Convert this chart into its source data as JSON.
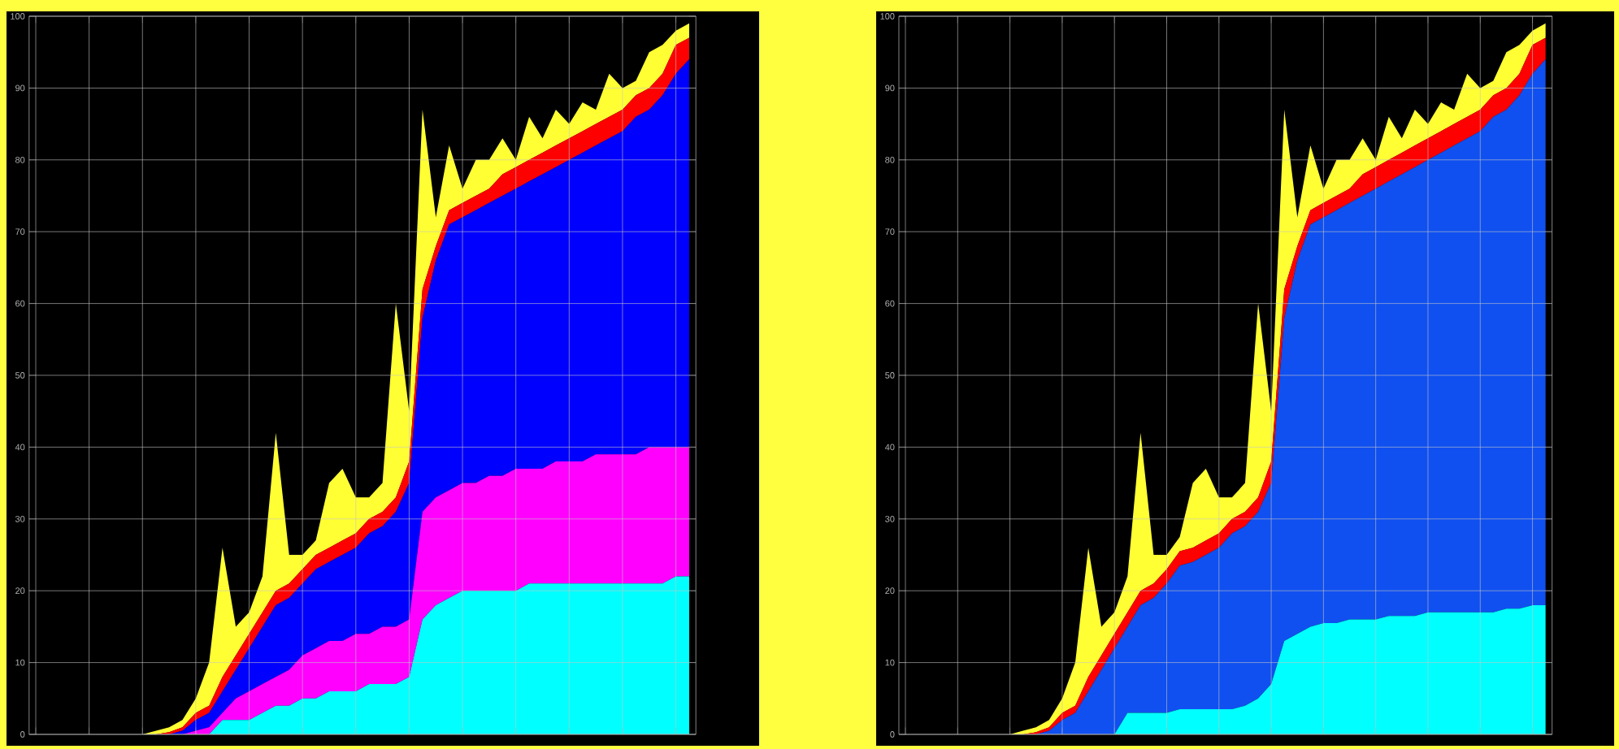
{
  "chart_data": [
    {
      "type": "area",
      "stacked": true,
      "grid": true,
      "categories": [
        null,
        null,
        null,
        null,
        null,
        null,
        null,
        null,
        null,
        null,
        null,
        null,
        null,
        null,
        null,
        null,
        null,
        null,
        null,
        null,
        null,
        null,
        null,
        null,
        null,
        null,
        null,
        null,
        null,
        null,
        null,
        null,
        null,
        null,
        null,
        null,
        null,
        null,
        null,
        null,
        null,
        null,
        null,
        null,
        null,
        null,
        null,
        null,
        null,
        null
      ],
      "series": [
        {
          "color": "#00ffff",
          "values": [
            0,
            0,
            0,
            0,
            0,
            0,
            0,
            0,
            0,
            0,
            0,
            0,
            0,
            0,
            2,
            2,
            2,
            3,
            4,
            4,
            5,
            5,
            6,
            6,
            6,
            7,
            7,
            7,
            8,
            16,
            18,
            19,
            20,
            20,
            20,
            20,
            20,
            21,
            21,
            21,
            21,
            21,
            21,
            21,
            21,
            21,
            21,
            21,
            22,
            22
          ]
        },
        {
          "color": "#ff00ff",
          "values": [
            0,
            0,
            0,
            0,
            0,
            0,
            0,
            0,
            0,
            0,
            0,
            0,
            0.5,
            1,
            1,
            3,
            4,
            4,
            4,
            5,
            6,
            7,
            7,
            7,
            8,
            7,
            8,
            8,
            8,
            15,
            15,
            15,
            15,
            15,
            16,
            16,
            17,
            16,
            16,
            17,
            17,
            17,
            18,
            18,
            18,
            18,
            19,
            19,
            18,
            18
          ]
        },
        {
          "color": "#0000ff",
          "values": [
            0,
            0,
            0,
            0,
            0,
            0,
            0,
            0,
            0,
            0,
            0,
            0.5,
            1.5,
            2,
            3,
            4,
            6,
            8,
            10,
            10,
            10,
            11,
            11,
            12,
            12,
            14,
            14,
            16,
            19,
            27,
            33,
            37,
            37,
            38,
            38,
            39,
            39,
            40,
            41,
            41,
            42,
            43,
            43,
            44,
            45,
            47,
            47,
            49,
            52,
            54
          ]
        },
        {
          "color": "#ff0000",
          "values": [
            0,
            0,
            0,
            0,
            0,
            0,
            0,
            0,
            0,
            0,
            0.3,
            0.5,
            1,
            1,
            2,
            2,
            2,
            2,
            2,
            2,
            2,
            2,
            2,
            2,
            2,
            2,
            2,
            2,
            3,
            4,
            2,
            2,
            2,
            2,
            2,
            3,
            3,
            3,
            3,
            3,
            3,
            3,
            3,
            3,
            3,
            3,
            3,
            3,
            4,
            3
          ]
        },
        {
          "color": "#ffff33",
          "values": [
            0,
            0,
            0,
            0,
            0,
            0,
            0,
            0,
            0,
            0.5,
            0.7,
            1,
            2,
            6,
            18,
            4,
            3,
            5,
            22,
            4,
            2,
            2,
            9,
            10,
            5,
            3,
            4,
            27,
            7,
            25,
            4,
            9,
            2,
            5,
            4,
            5,
            1,
            6,
            2,
            5,
            2,
            4,
            2,
            6,
            3,
            2,
            5,
            4,
            2,
            2
          ]
        }
      ],
      "ylim": [
        0,
        100
      ],
      "yticks": [
        0,
        10,
        20,
        30,
        40,
        50,
        60,
        70,
        80,
        90,
        100
      ]
    },
    {
      "type": "area",
      "stacked": true,
      "grid": true,
      "categories": [
        null,
        null,
        null,
        null,
        null,
        null,
        null,
        null,
        null,
        null,
        null,
        null,
        null,
        null,
        null,
        null,
        null,
        null,
        null,
        null,
        null,
        null,
        null,
        null,
        null,
        null,
        null,
        null,
        null,
        null,
        null,
        null,
        null,
        null,
        null,
        null,
        null,
        null,
        null,
        null,
        null,
        null,
        null,
        null,
        null,
        null,
        null,
        null,
        null,
        null
      ],
      "series": [
        {
          "color": "#00ffff",
          "values": [
            0,
            0,
            0,
            0,
            0,
            0,
            0,
            0,
            0,
            0,
            0,
            0,
            0,
            0,
            0,
            0,
            0,
            3,
            3,
            3,
            3,
            3.5,
            3.5,
            3.5,
            3.5,
            3.5,
            4,
            5,
            7,
            13,
            14,
            15,
            15.5,
            15.5,
            16,
            16,
            16,
            16.5,
            16.5,
            16.5,
            17,
            17,
            17,
            17,
            17,
            17,
            17.5,
            17.5,
            18,
            18
          ]
        },
        {
          "color": "#1050f0",
          "values": [
            0,
            0,
            0,
            0,
            0,
            0,
            0,
            0,
            0,
            0,
            0,
            0.5,
            2,
            3,
            6,
            9,
            12,
            12,
            15,
            16,
            18,
            20,
            20.5,
            21.5,
            22.5,
            24.5,
            25,
            26,
            28,
            45,
            52,
            56,
            56.5,
            57.5,
            58,
            59,
            60,
            60.5,
            61.5,
            62.5,
            63,
            64,
            65,
            66,
            67,
            69,
            69.5,
            71.5,
            74,
            76
          ]
        },
        {
          "color": "#ff0000",
          "values": [
            0,
            0,
            0,
            0,
            0,
            0,
            0,
            0,
            0,
            0,
            0.3,
            0.5,
            1,
            1,
            2,
            2,
            2,
            2,
            2,
            2,
            2,
            2,
            2,
            2,
            2,
            2,
            2,
            2,
            3,
            4,
            2,
            2,
            2,
            2,
            2,
            3,
            3,
            3,
            3,
            3,
            3,
            3,
            3,
            3,
            3,
            3,
            3,
            3,
            4,
            3
          ]
        },
        {
          "color": "#ffff33",
          "values": [
            0,
            0,
            0,
            0,
            0,
            0,
            0,
            0,
            0,
            0.5,
            0.7,
            1,
            2,
            6,
            18,
            4,
            3,
            5,
            22,
            4,
            2,
            2,
            9,
            10,
            5,
            3,
            4,
            27,
            7,
            25,
            4,
            9,
            2,
            5,
            4,
            5,
            1,
            6,
            2,
            5,
            2,
            4,
            2,
            6,
            3,
            2,
            5,
            4,
            2,
            2
          ]
        }
      ],
      "ylim": [
        0,
        100
      ],
      "yticks": [
        0,
        10,
        20,
        30,
        40,
        50,
        60,
        70,
        80,
        90,
        100
      ]
    }
  ]
}
